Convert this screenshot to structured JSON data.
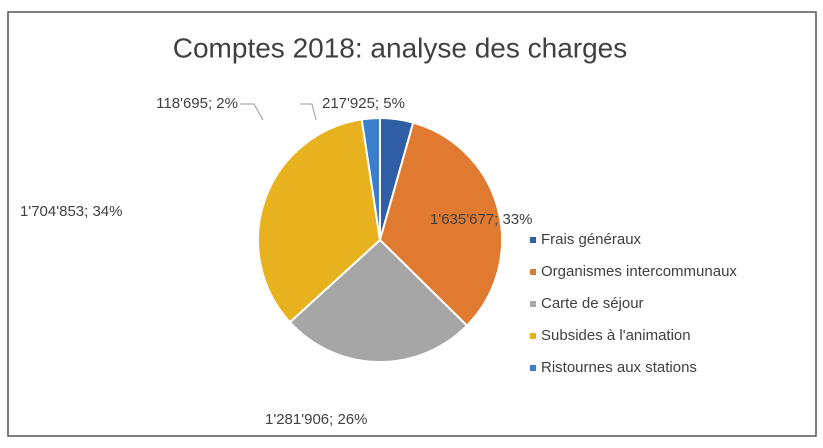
{
  "chart_data": {
    "type": "pie",
    "title": "Comptes 2018: analyse des charges",
    "categories": [
      "Frais généraux",
      "Organismes intercommunaux",
      "Carte de séjour",
      "Subsides à l'animation",
      "Ristournes aux stations"
    ],
    "values": [
      217925,
      1635677,
      1281906,
      1704853,
      118695
    ],
    "value_labels": [
      "217'925; 5%",
      "1'635'677; 33%",
      "1'281'906; 26%",
      "1'704'853; 34%",
      "118'695; 2%"
    ],
    "colors": [
      "#2f5ea6",
      "#e07a30",
      "#a6a6a6",
      "#e8b11e",
      "#3b7fcc"
    ],
    "legend": "right"
  }
}
